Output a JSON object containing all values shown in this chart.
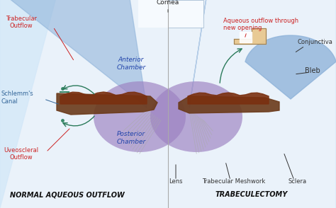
{
  "bg_color": "#f0f4f8",
  "left_label": "NORMAL AQUEOUS OUTFLOW",
  "right_label": "TRABECULECTOMY",
  "cornea_label": "Cornea",
  "anterior_chamber": "Anterior\nChamber",
  "posterior_chamber": "Posterior\nChamber",
  "lens_label": "Lens",
  "trabecular_meshwork": "Trabecular Meshwork",
  "sclera": "Sclera",
  "schlemms_canal": "Schlemm's\nCanal",
  "trabecular_outflow": "Trabecular\nOutflow",
  "uveoscleral_outflow": "Uveoscleral\nOutflow",
  "aqueous_outflow_new": "Aqueous outflow through\nnew opening",
  "conjunctiva": "Conjunctiva",
  "bleb": "Bleb",
  "color_sclera": "#e8b88a",
  "color_sclera_edge": "#c89060",
  "color_cornea": "#dce8f4",
  "color_cornea_inner": "#c8daf0",
  "color_anterior": "#8aafe0",
  "color_posterior": "#9b7fc0",
  "color_iris_dark": "#6b3a1a",
  "color_iris_mid": "#8b5a2a",
  "color_trabecular_dark": "#5a2a0a",
  "color_zonule": "#999999",
  "color_schlemm": "#3a8a6a",
  "color_bleb": "#8ab0d8",
  "color_bg_light": "#e8f0f8",
  "color_bg_gradient_top": "#f8fafc",
  "color_divider": "#aaaaaa",
  "red_color": "#cc2222",
  "blue_color": "#336699",
  "dark_color": "#333333",
  "pink_bg": "#f0d8d8",
  "white": "#ffffff"
}
